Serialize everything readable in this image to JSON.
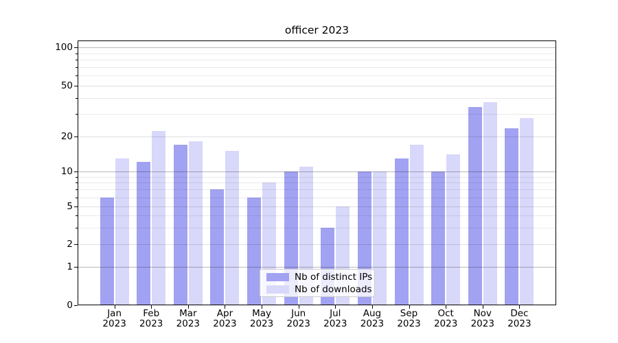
{
  "chart_data": {
    "type": "bar",
    "title": "officer 2023",
    "categories": [
      "Jan 2023",
      "Feb 2023",
      "Mar 2023",
      "Apr 2023",
      "May 2023",
      "Jun 2023",
      "Jul 2023",
      "Aug 2023",
      "Sep 2023",
      "Oct 2023",
      "Nov 2023",
      "Dec 2023"
    ],
    "series": [
      {
        "name": "Nb of distinct IPs",
        "color": "#a2a2f2",
        "values": [
          6,
          12,
          17,
          7,
          6,
          10,
          3,
          10,
          13,
          10,
          34,
          23
        ]
      },
      {
        "name": "Nb of downloads",
        "color": "#d8d8fa",
        "values": [
          13,
          22,
          18,
          15,
          8,
          11,
          5,
          10,
          17,
          14,
          37,
          28
        ]
      }
    ],
    "xlabel": "",
    "ylabel": "",
    "yscale": "log-like (symlog with 0 at baseline)",
    "y_ticks": [
      0,
      1,
      2,
      5,
      10,
      20,
      50,
      100
    ],
    "y_decade_ticks": [
      1,
      10,
      100
    ],
    "y_minor_ticks": [
      3,
      4,
      6,
      7,
      8,
      9,
      30,
      40,
      60,
      70,
      80,
      90
    ],
    "ylim": [
      0,
      113
    ],
    "grid": true,
    "legend_position": "lower center"
  }
}
